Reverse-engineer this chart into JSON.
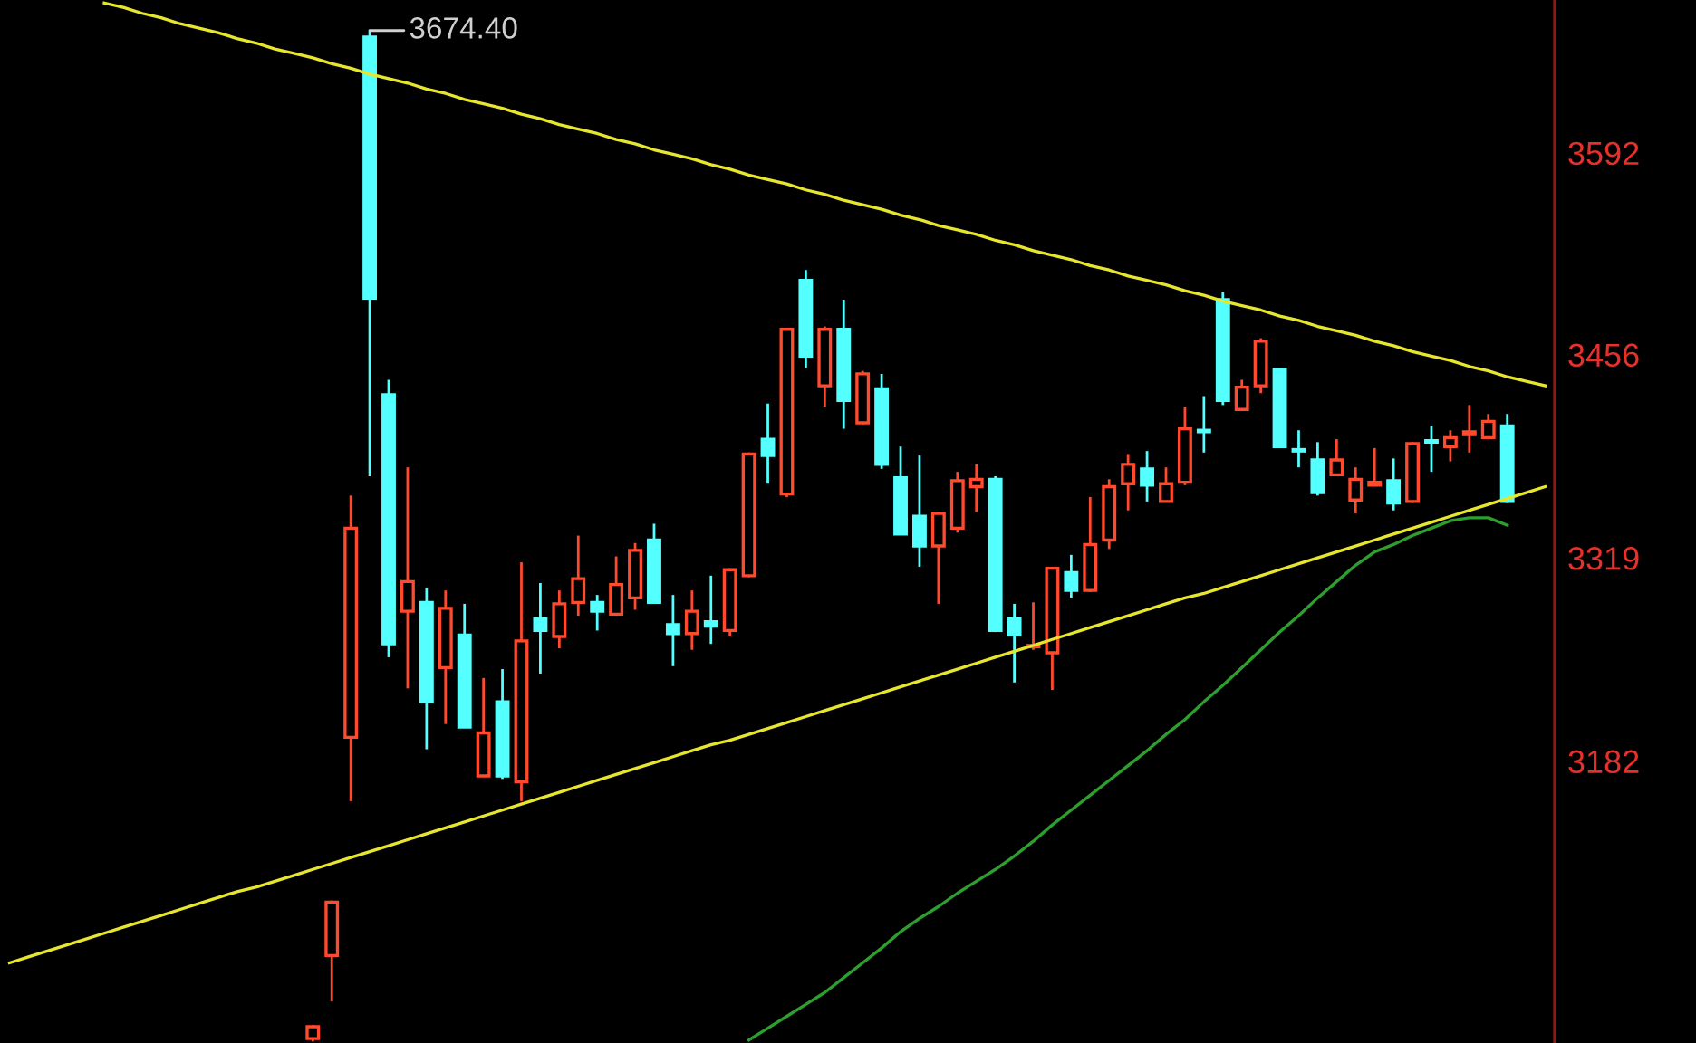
{
  "chart_data": {
    "type": "candlestick",
    "tick_labels": "y",
    "ylim": [
      2992,
      3695
    ],
    "yticks": [
      3182,
      3319,
      3456,
      3592
    ],
    "grid": false,
    "categories": [
      null,
      null,
      null,
      null,
      null,
      null,
      null,
      null,
      null,
      null,
      null,
      null,
      null,
      null,
      null,
      null,
      null,
      null,
      null,
      null,
      null,
      null,
      null,
      null,
      null,
      null,
      null,
      null,
      null,
      null,
      null,
      null,
      null,
      null,
      null,
      null,
      null,
      null,
      null,
      null,
      null,
      null,
      null,
      null,
      null,
      null,
      null,
      null,
      null,
      null,
      null,
      null,
      null,
      null,
      null,
      null,
      null,
      null,
      null,
      null,
      null,
      null,
      null,
      null,
      null,
      null,
      null,
      null,
      null,
      null,
      null,
      null,
      null,
      null,
      null,
      null,
      null,
      null,
      null,
      null,
      null,
      null
    ],
    "ohlc": [
      null,
      null,
      null,
      null,
      null,
      null,
      null,
      null,
      null,
      null,
      null,
      null,
      null,
      null,
      null,
      null,
      [
        2995,
        3004,
        2993,
        3003
      ],
      [
        3051,
        3088,
        3020,
        3087
      ],
      [
        3198,
        3361,
        3155,
        3339
      ],
      [
        3670,
        3674.4,
        3374,
        3494
      ],
      [
        3429,
        3439,
        3252,
        3261
      ],
      [
        3283,
        3380,
        3231,
        3303
      ],
      [
        3289,
        3299,
        3190,
        3222
      ],
      [
        3245,
        3297,
        3207,
        3285
      ],
      [
        3267,
        3288,
        3205,
        3205
      ],
      [
        3172,
        3238,
        3172,
        3201
      ],
      [
        3222,
        3244,
        3170,
        3172
      ],
      [
        3168,
        3316,
        3155,
        3263
      ],
      [
        3278,
        3302,
        3241,
        3270
      ],
      [
        3266,
        3297,
        3258,
        3288
      ],
      [
        3289,
        3334,
        3280,
        3305
      ],
      [
        3289,
        3294,
        3270,
        3283
      ],
      [
        3281,
        3320,
        3280,
        3301
      ],
      [
        3292,
        3329,
        3284,
        3324
      ],
      [
        3331,
        3342,
        3288,
        3289
      ],
      [
        3274,
        3294,
        3246,
        3268
      ],
      [
        3268,
        3297,
        3257,
        3283
      ],
      [
        3276,
        3307,
        3261,
        3273
      ],
      [
        3270,
        3312,
        3266,
        3311
      ],
      [
        3307,
        3390,
        3306,
        3389
      ],
      [
        3399,
        3423,
        3369,
        3388
      ],
      [
        3362,
        3474,
        3360,
        3473
      ],
      [
        3506,
        3513,
        3447,
        3455
      ],
      [
        3435,
        3475,
        3421,
        3473
      ],
      [
        3473,
        3493,
        3406,
        3425
      ],
      [
        3410,
        3445,
        3409,
        3443
      ],
      [
        3433,
        3443,
        3379,
        3382
      ],
      [
        3373,
        3394,
        3335,
        3335
      ],
      [
        3347,
        3388,
        3313,
        3327
      ],
      [
        3327,
        3350,
        3288,
        3349
      ],
      [
        3339,
        3377,
        3336,
        3371
      ],
      [
        3367,
        3382,
        3350,
        3372
      ],
      [
        3372,
        3374,
        3269,
        3270
      ],
      [
        3278,
        3288,
        3235,
        3267
      ],
      [
        3259,
        3289,
        3257,
        3260
      ],
      [
        3255,
        3312,
        3230,
        3312
      ],
      [
        3309,
        3321,
        3292,
        3297
      ],
      [
        3297,
        3360,
        3296,
        3328
      ],
      [
        3331,
        3372,
        3325,
        3367
      ],
      [
        3369,
        3389,
        3351,
        3382
      ],
      [
        3379,
        3391,
        3357,
        3368
      ],
      [
        3357,
        3380,
        3357,
        3369
      ],
      [
        3370,
        3421,
        3368,
        3406
      ],
      [
        3405,
        3428,
        3390,
        3404
      ],
      [
        3493,
        3498,
        3422,
        3425
      ],
      [
        3419,
        3439,
        3419,
        3434
      ],
      [
        3435,
        3467,
        3430,
        3465
      ],
      [
        3446,
        3446,
        3393,
        3394
      ],
      [
        3392,
        3405,
        3380,
        3391
      ],
      [
        3385,
        3397,
        3361,
        3363
      ],
      [
        3375,
        3399,
        3375,
        3385
      ],
      [
        3358,
        3380,
        3349,
        3372
      ],
      [
        3368,
        3393,
        3368,
        3370
      ],
      [
        3371,
        3386,
        3351,
        3356
      ],
      [
        3357,
        3397,
        3356,
        3396
      ],
      [
        3398,
        3408,
        3377,
        3397
      ],
      [
        3394,
        3405,
        3384,
        3400
      ],
      [
        3402,
        3422,
        3390,
        3404
      ],
      [
        3400,
        3416,
        3399,
        3411
      ],
      [
        3408,
        3416,
        3356,
        3357
      ],
      null,
      null
    ],
    "series": [
      {
        "type": "line",
        "color": "#e6e62e",
        "values": [
          null,
          null,
          null,
          null,
          null,
          3693,
          3690,
          3686,
          3683,
          3679,
          3676,
          3673,
          3669,
          3666,
          3662,
          3659,
          3656,
          3652,
          3649,
          3645,
          3642,
          3639,
          3635,
          3632,
          3628,
          3625,
          3622,
          3618,
          3615,
          3611,
          3608,
          3605,
          3601,
          3598,
          3594,
          3591,
          3588,
          3584,
          3581,
          3577,
          3574,
          3571,
          3567,
          3564,
          3560,
          3557,
          3554,
          3550,
          3547,
          3543,
          3540,
          3537,
          3533,
          3530,
          3526,
          3523,
          3520,
          3516,
          3513,
          3509,
          3506,
          3503,
          3499,
          3496,
          3492,
          3489,
          3486,
          3482,
          3479,
          3475,
          3472,
          3469,
          3465,
          3462,
          3458,
          3455,
          3452,
          3448,
          3445,
          3441,
          3438,
          3435
        ]
      },
      {
        "type": "line",
        "color": "#e6e62e",
        "values": [
          3046,
          3050,
          3054,
          3058,
          3062,
          3066,
          3070,
          3074,
          3078,
          3082,
          3086,
          3090,
          3094,
          3097,
          3101,
          3105,
          3109,
          3113,
          3117,
          3121,
          3125,
          3129,
          3133,
          3137,
          3141,
          3145,
          3149,
          3153,
          3157,
          3161,
          3165,
          3169,
          3173,
          3177,
          3181,
          3185,
          3189,
          3193,
          3196,
          3200,
          3204,
          3208,
          3212,
          3216,
          3220,
          3224,
          3228,
          3232,
          3236,
          3240,
          3244,
          3248,
          3252,
          3256,
          3260,
          3264,
          3268,
          3272,
          3276,
          3280,
          3284,
          3288,
          3292,
          3295,
          3299,
          3303,
          3307,
          3311,
          3315,
          3319,
          3323,
          3327,
          3331,
          3335,
          3339,
          3343,
          3347,
          3351,
          3355,
          3359,
          3363,
          3367
        ]
      },
      {
        "type": "line",
        "color": "#2e9e2e",
        "values": [
          null,
          null,
          null,
          null,
          null,
          null,
          null,
          null,
          null,
          null,
          null,
          null,
          null,
          null,
          null,
          null,
          null,
          null,
          null,
          null,
          null,
          null,
          null,
          null,
          null,
          null,
          null,
          null,
          null,
          null,
          null,
          null,
          null,
          null,
          null,
          null,
          null,
          null,
          null,
          2994,
          3002,
          3010,
          3018,
          3026,
          3036,
          3046,
          3056,
          3067,
          3076,
          3084,
          3093,
          3101,
          3109,
          3118,
          3128,
          3139,
          3149,
          3159,
          3169,
          3179,
          3189,
          3200,
          3210,
          3222,
          3233,
          3245,
          3257,
          3269,
          3280,
          3292,
          3303,
          3314,
          3323,
          3328,
          3334,
          3339,
          3344,
          3346,
          3346,
          3341,
          null,
          null
        ]
      }
    ],
    "annotations": [
      "3674.40"
    ]
  }
}
